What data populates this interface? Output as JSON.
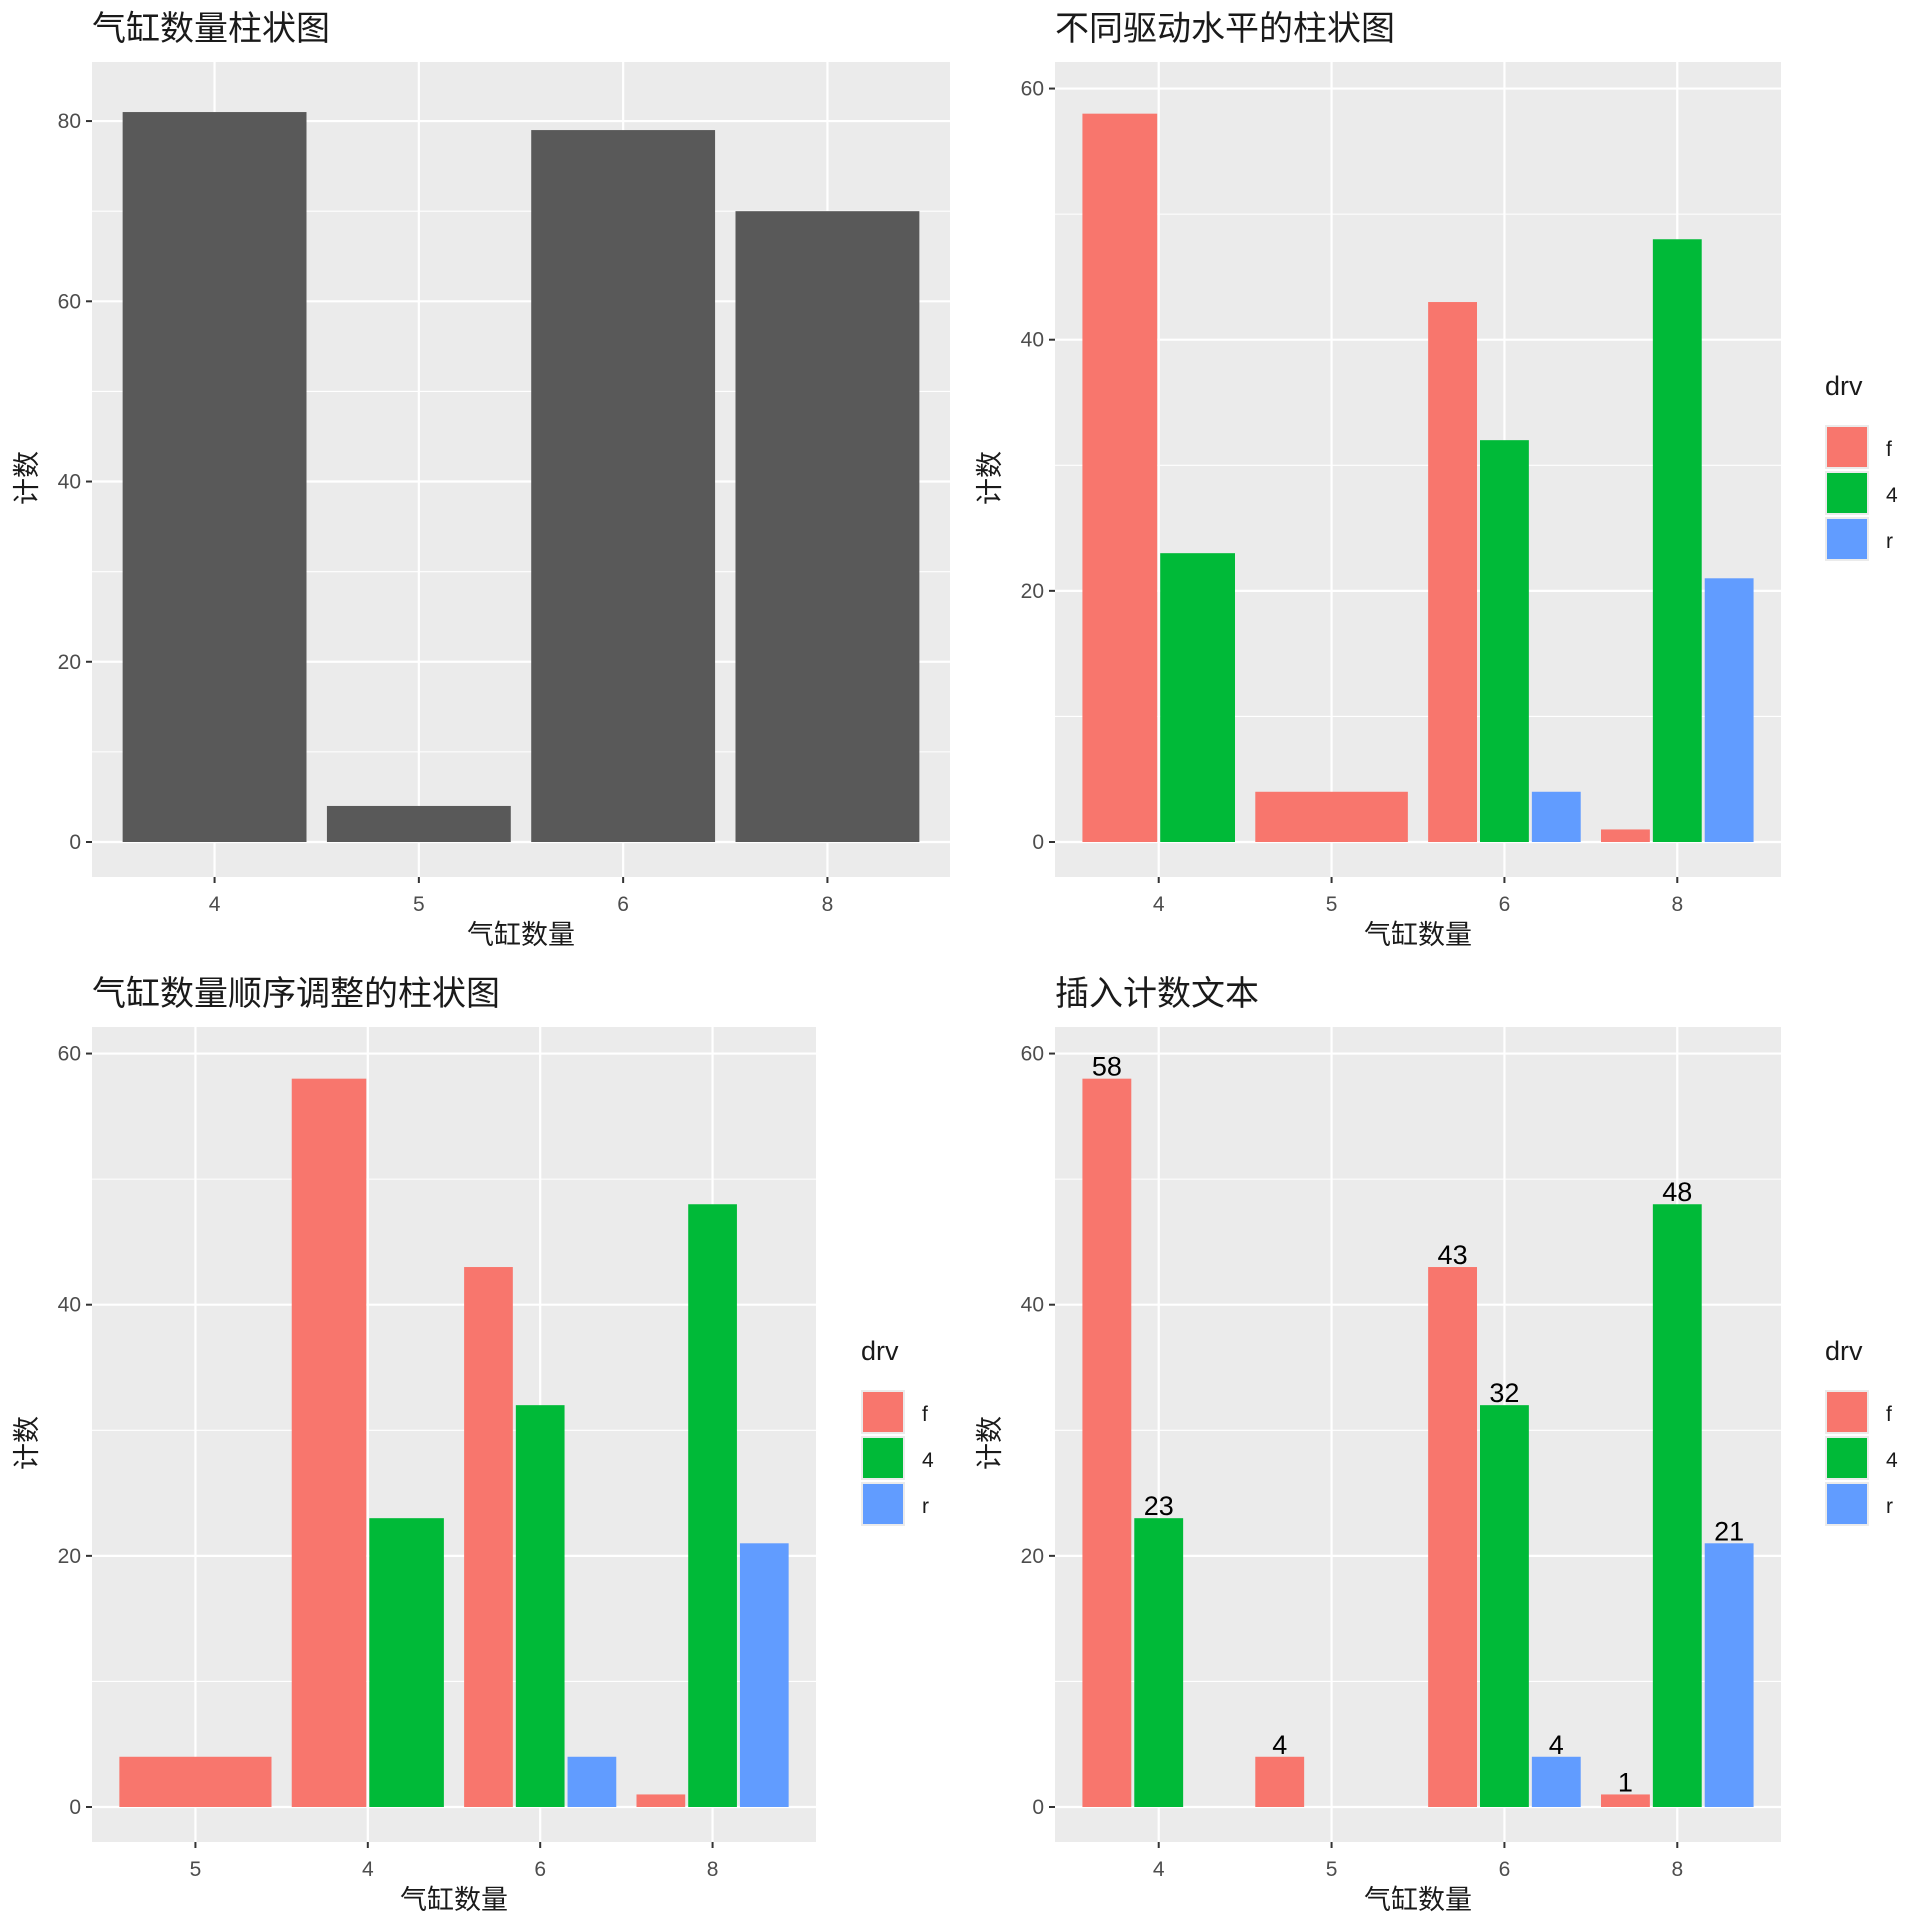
{
  "colors": {
    "panel_bg": "#EBEBEB",
    "grid": "#FFFFFF",
    "bar_default": "#595959",
    "f": "#F8766D",
    "4": "#00BA38",
    "r": "#619CFF"
  },
  "chart_data": [
    {
      "type": "bar",
      "title": "气缸数量柱状图",
      "xlabel": "气缸数量",
      "ylabel": "计数",
      "categories": [
        "4",
        "5",
        "6",
        "8"
      ],
      "values": [
        81,
        4,
        79,
        70
      ],
      "yticks": [
        0,
        20,
        40,
        60,
        80
      ],
      "ylim": [
        0,
        85
      ],
      "legend": null
    },
    {
      "type": "bar",
      "title": "不同驱动水平的柱状图",
      "xlabel": "气缸数量",
      "ylabel": "计数",
      "categories": [
        "4",
        "5",
        "6",
        "8"
      ],
      "series": [
        {
          "name": "f",
          "values": [
            58,
            4,
            43,
            1
          ]
        },
        {
          "name": "4",
          "values": [
            23,
            null,
            32,
            48
          ]
        },
        {
          "name": "r",
          "values": [
            null,
            null,
            4,
            21
          ]
        }
      ],
      "position": "dodge",
      "yticks": [
        0,
        20,
        40,
        60
      ],
      "ylim": [
        0,
        61
      ],
      "legend": {
        "title": "drv",
        "entries": [
          "f",
          "4",
          "r"
        ],
        "placement": "right"
      }
    },
    {
      "type": "bar",
      "title": "气缸数量顺序调整的柱状图",
      "xlabel": "气缸数量",
      "ylabel": "计数",
      "categories": [
        "5",
        "4",
        "6",
        "8"
      ],
      "series": [
        {
          "name": "f",
          "values": [
            4,
            58,
            43,
            1
          ]
        },
        {
          "name": "4",
          "values": [
            null,
            23,
            32,
            48
          ]
        },
        {
          "name": "r",
          "values": [
            null,
            null,
            4,
            21
          ]
        }
      ],
      "position": "dodge",
      "yticks": [
        0,
        20,
        40,
        60
      ],
      "ylim": [
        0,
        61
      ],
      "legend": {
        "title": "drv",
        "entries": [
          "f",
          "4",
          "r"
        ],
        "placement": "right"
      }
    },
    {
      "type": "bar",
      "title": "插入计数文本",
      "xlabel": "气缸数量",
      "ylabel": "计数",
      "categories": [
        "4",
        "5",
        "6",
        "8"
      ],
      "series": [
        {
          "name": "f",
          "values": [
            58,
            4,
            43,
            1
          ]
        },
        {
          "name": "4",
          "values": [
            23,
            null,
            32,
            48
          ]
        },
        {
          "name": "r",
          "values": [
            null,
            null,
            4,
            21
          ]
        }
      ],
      "position": "dodge_fixed",
      "data_labels": true,
      "yticks": [
        0,
        20,
        40,
        60
      ],
      "ylim": [
        0,
        61
      ],
      "legend": {
        "title": "drv",
        "entries": [
          "f",
          "4",
          "r"
        ],
        "placement": "right"
      }
    }
  ]
}
